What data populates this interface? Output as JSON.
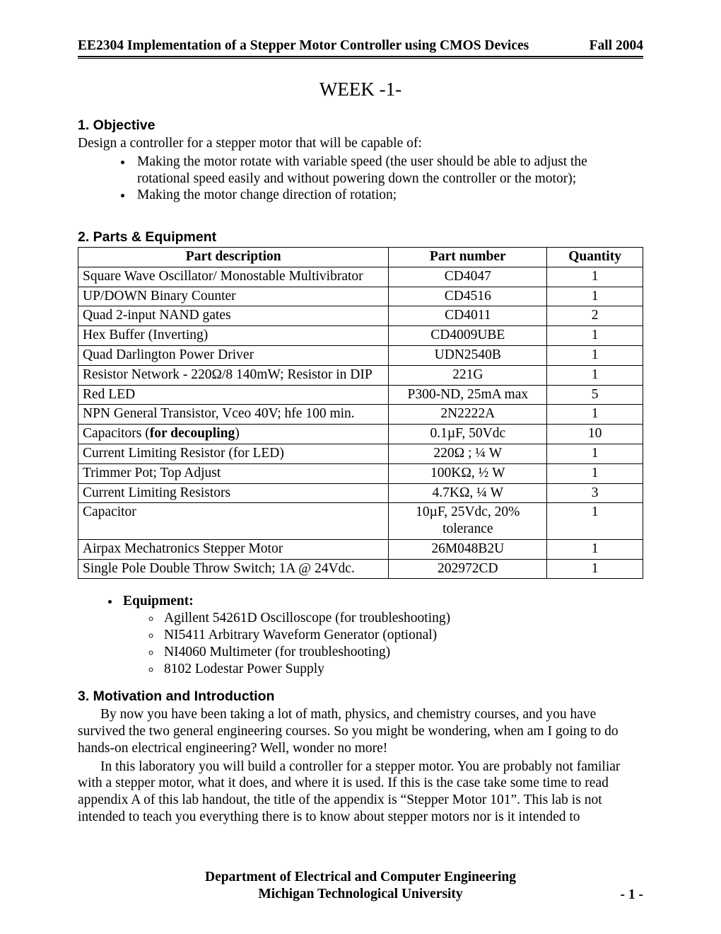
{
  "header": {
    "left": "EE2304 Implementation of a Stepper Motor Controller using CMOS Devices",
    "right": "Fall 2004"
  },
  "title": "WEEK -1-",
  "section1": {
    "heading": "1.  Objective",
    "intro": "Design a controller for a stepper motor that will be capable of:",
    "bullets": [
      "Making the motor rotate with variable speed (the user should be able to adjust the rotational speed easily and without powering down the controller or the motor);",
      "Making the motor change direction of rotation;"
    ]
  },
  "section2": {
    "heading": "2.  Parts & Equipment",
    "columns": [
      "Part description",
      "Part number",
      "Quantity"
    ],
    "rows": [
      [
        "Square Wave Oscillator/ Monostable Multivibrator",
        "CD4047",
        "1"
      ],
      [
        "UP/DOWN Binary Counter",
        "CD4516",
        "1"
      ],
      [
        "Quad 2-input NAND gates",
        "CD4011",
        "2"
      ],
      [
        "Hex Buffer (Inverting)",
        "CD4009UBE",
        "1"
      ],
      [
        "Quad Darlington Power Driver",
        "UDN2540B",
        "1"
      ],
      [
        "Resistor Network - 220Ω/8 140mW; Resistor in DIP",
        "221G",
        "1"
      ],
      [
        "Red LED",
        "P300-ND, 25mA max",
        "5"
      ],
      [
        "NPN General Transistor, Vceo 40V; hfe 100 min.",
        "2N2222A",
        "1"
      ],
      [
        "Capacitors (<b>for decoupling</b>)",
        "0.1µF, 50Vdc",
        "10"
      ],
      [
        "Current Limiting Resistor (for LED)",
        "220Ω ; ¼ W",
        "1"
      ],
      [
        "Trimmer Pot; Top Adjust",
        "100KΩ, ½ W",
        "1"
      ],
      [
        "Current Limiting Resistors",
        "4.7KΩ, ¼ W",
        "3"
      ],
      [
        "Capacitor",
        "10µF, 25Vdc, 20% tolerance",
        "1"
      ],
      [
        "Airpax Mechatronics Stepper Motor",
        "26M048B2U",
        "1"
      ],
      [
        "Single Pole Double Throw Switch; 1A @ 24Vdc.",
        "202972CD",
        "1"
      ]
    ],
    "equip_label": "Equipment:",
    "equipment": [
      "Agillent 54261D Oscilloscope (for troubleshooting)",
      "NI5411 Arbitrary Waveform Generator (optional)",
      "NI4060 Multimeter (for troubleshooting)",
      "8102 Lodestar Power Supply"
    ]
  },
  "section3": {
    "heading": "3.  Motivation and Introduction",
    "p1": "By now you have been taking a lot of math, physics, and chemistry courses, and you have survived the two general engineering courses. So you might be wondering, when am I going to do hands-on electrical engineering? Well, wonder no more!",
    "p2": "In this laboratory you will build a controller for a stepper motor. You are probably not familiar with a stepper motor, what it does, and where it is used. If this is the case take some time to read appendix A of this lab handout, the title of the appendix is “Stepper Motor 101”. This lab is not intended to teach you everything there is to know about stepper motors nor is it intended to"
  },
  "footer": {
    "line1": "Department of Electrical and Computer Engineering",
    "line2": "Michigan Technological University",
    "page": "- 1 -"
  }
}
